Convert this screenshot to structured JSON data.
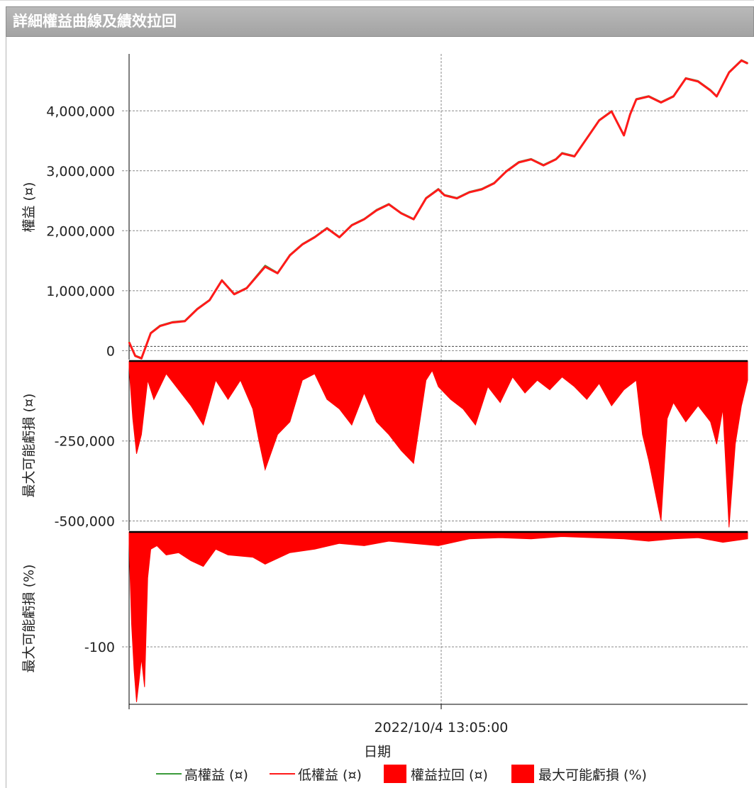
{
  "window": {
    "title": "詳細權益曲線及績效拉回"
  },
  "colors": {
    "high_equity": "#3b9b3b",
    "low_equity": "#ff1a1a",
    "fill": "#ff0000",
    "grid": "#888888",
    "axis": "#000000"
  },
  "chart_data": [
    {
      "type": "line",
      "panel": "equity",
      "ylabel": "權益 (¤)",
      "ylim": [
        -150000,
        4950000
      ],
      "yticks": [
        0,
        1000000,
        2000000,
        3000000,
        4000000
      ],
      "ytick_labels": [
        "0",
        "1,000,000",
        "2,000,000",
        "3,000,000",
        "4,000,000"
      ],
      "grid": true,
      "x": [
        0,
        0.01,
        0.02,
        0.035,
        0.05,
        0.07,
        0.09,
        0.11,
        0.13,
        0.15,
        0.17,
        0.19,
        0.22,
        0.24,
        0.26,
        0.28,
        0.3,
        0.32,
        0.34,
        0.36,
        0.38,
        0.4,
        0.42,
        0.44,
        0.46,
        0.48,
        0.5,
        0.51,
        0.53,
        0.55,
        0.57,
        0.59,
        0.61,
        0.63,
        0.65,
        0.67,
        0.69,
        0.7,
        0.72,
        0.74,
        0.76,
        0.78,
        0.8,
        0.81,
        0.82,
        0.84,
        0.86,
        0.88,
        0.9,
        0.92,
        0.94,
        0.95,
        0.97,
        0.99,
        1.0
      ],
      "series": [
        {
          "name": "高權益 (¤)",
          "values": [
            150000,
            -80000,
            -120000,
            300000,
            420000,
            480000,
            500000,
            700000,
            850000,
            1180000,
            950000,
            1050000,
            1420000,
            1300000,
            1600000,
            1780000,
            1900000,
            2050000,
            1900000,
            2100000,
            2200000,
            2350000,
            2450000,
            2300000,
            2200000,
            2550000,
            2700000,
            2600000,
            2550000,
            2650000,
            2700000,
            2800000,
            3000000,
            3150000,
            3200000,
            3100000,
            3200000,
            3300000,
            3250000,
            3550000,
            3850000,
            4000000,
            3600000,
            3950000,
            4200000,
            4250000,
            4150000,
            4250000,
            4550000,
            4500000,
            4350000,
            4250000,
            4650000,
            4850000,
            4800000
          ]
        },
        {
          "name": "低權益 (¤)",
          "values": [
            140000,
            -90000,
            -130000,
            290000,
            410000,
            470000,
            490000,
            690000,
            840000,
            1170000,
            940000,
            1040000,
            1400000,
            1290000,
            1590000,
            1770000,
            1890000,
            2040000,
            1890000,
            2090000,
            2190000,
            2340000,
            2440000,
            2290000,
            2190000,
            2540000,
            2690000,
            2590000,
            2540000,
            2640000,
            2690000,
            2790000,
            2990000,
            3140000,
            3190000,
            3090000,
            3190000,
            3290000,
            3240000,
            3540000,
            3840000,
            3990000,
            3590000,
            3940000,
            4190000,
            4240000,
            4140000,
            4240000,
            4540000,
            4490000,
            4340000,
            4240000,
            4640000,
            4840000,
            4790000
          ]
        }
      ]
    },
    {
      "type": "area",
      "panel": "drawdown_amount",
      "ylabel": "最大可能虧損 (¤)",
      "ylim": [
        -530000,
        0
      ],
      "yticks": [
        -250000,
        -500000
      ],
      "ytick_labels": [
        "-250,000",
        "-500,000"
      ],
      "grid": true,
      "x": [
        0,
        0.006,
        0.012,
        0.02,
        0.03,
        0.04,
        0.06,
        0.08,
        0.1,
        0.12,
        0.14,
        0.16,
        0.18,
        0.2,
        0.21,
        0.22,
        0.24,
        0.26,
        0.28,
        0.3,
        0.32,
        0.34,
        0.36,
        0.38,
        0.4,
        0.42,
        0.44,
        0.46,
        0.48,
        0.49,
        0.5,
        0.52,
        0.54,
        0.56,
        0.58,
        0.6,
        0.62,
        0.64,
        0.66,
        0.68,
        0.7,
        0.72,
        0.74,
        0.76,
        0.78,
        0.8,
        0.82,
        0.83,
        0.84,
        0.86,
        0.87,
        0.88,
        0.9,
        0.92,
        0.94,
        0.95,
        0.96,
        0.97,
        0.98,
        0.99,
        1.0
      ],
      "series": [
        {
          "name": "權益拉回 (¤)",
          "values": [
            -20000,
            -180000,
            -290000,
            -230000,
            -60000,
            -120000,
            -40000,
            -90000,
            -140000,
            -200000,
            -60000,
            -120000,
            -60000,
            -150000,
            -250000,
            -340000,
            -230000,
            -190000,
            -60000,
            -40000,
            -120000,
            -150000,
            -200000,
            -100000,
            -190000,
            -230000,
            -280000,
            -320000,
            -60000,
            -30000,
            -80000,
            -120000,
            -150000,
            -200000,
            -80000,
            -130000,
            -50000,
            -100000,
            -60000,
            -90000,
            -50000,
            -80000,
            -120000,
            -70000,
            -140000,
            -90000,
            -60000,
            -230000,
            -310000,
            -500000,
            -180000,
            -130000,
            -190000,
            -140000,
            -190000,
            -260000,
            -150000,
            -520000,
            -260000,
            -140000,
            -60000
          ]
        }
      ]
    },
    {
      "type": "area",
      "panel": "drawdown_percent",
      "ylabel": "最大可能虧損 (%)",
      "ylim": [
        -150,
        0
      ],
      "yticks": [
        -100
      ],
      "ytick_labels": [
        "-100"
      ],
      "grid": true,
      "x": [
        0,
        0.004,
        0.008,
        0.012,
        0.016,
        0.02,
        0.025,
        0.03,
        0.035,
        0.045,
        0.06,
        0.08,
        0.1,
        0.12,
        0.14,
        0.16,
        0.2,
        0.22,
        0.26,
        0.3,
        0.34,
        0.38,
        0.42,
        0.46,
        0.5,
        0.55,
        0.6,
        0.65,
        0.7,
        0.75,
        0.8,
        0.84,
        0.88,
        0.92,
        0.96,
        1.0
      ],
      "series": [
        {
          "name": "最大可能虧損 (%)",
          "values": [
            -10,
            -80,
            -120,
            -148,
            -130,
            -110,
            -135,
            -40,
            -15,
            -12,
            -20,
            -18,
            -25,
            -30,
            -15,
            -20,
            -22,
            -28,
            -18,
            -15,
            -10,
            -12,
            -8,
            -10,
            -12,
            -6,
            -5,
            -6,
            -4,
            -5,
            -6,
            -8,
            -6,
            -5,
            -9,
            -6
          ]
        }
      ]
    }
  ],
  "axes": {
    "xtick_label": "2022/10/4 13:05:00",
    "xlabel": "日期"
  },
  "legend": [
    {
      "label": "高權益 (¤)",
      "kind": "line",
      "color": "#3b9b3b"
    },
    {
      "label": "低權益 (¤)",
      "kind": "line",
      "color": "#ff1a1a"
    },
    {
      "label": "權益拉回 (¤)",
      "kind": "box",
      "color": "#ff0000"
    },
    {
      "label": "最大可能虧損 (%)",
      "kind": "box",
      "color": "#ff0000"
    }
  ]
}
